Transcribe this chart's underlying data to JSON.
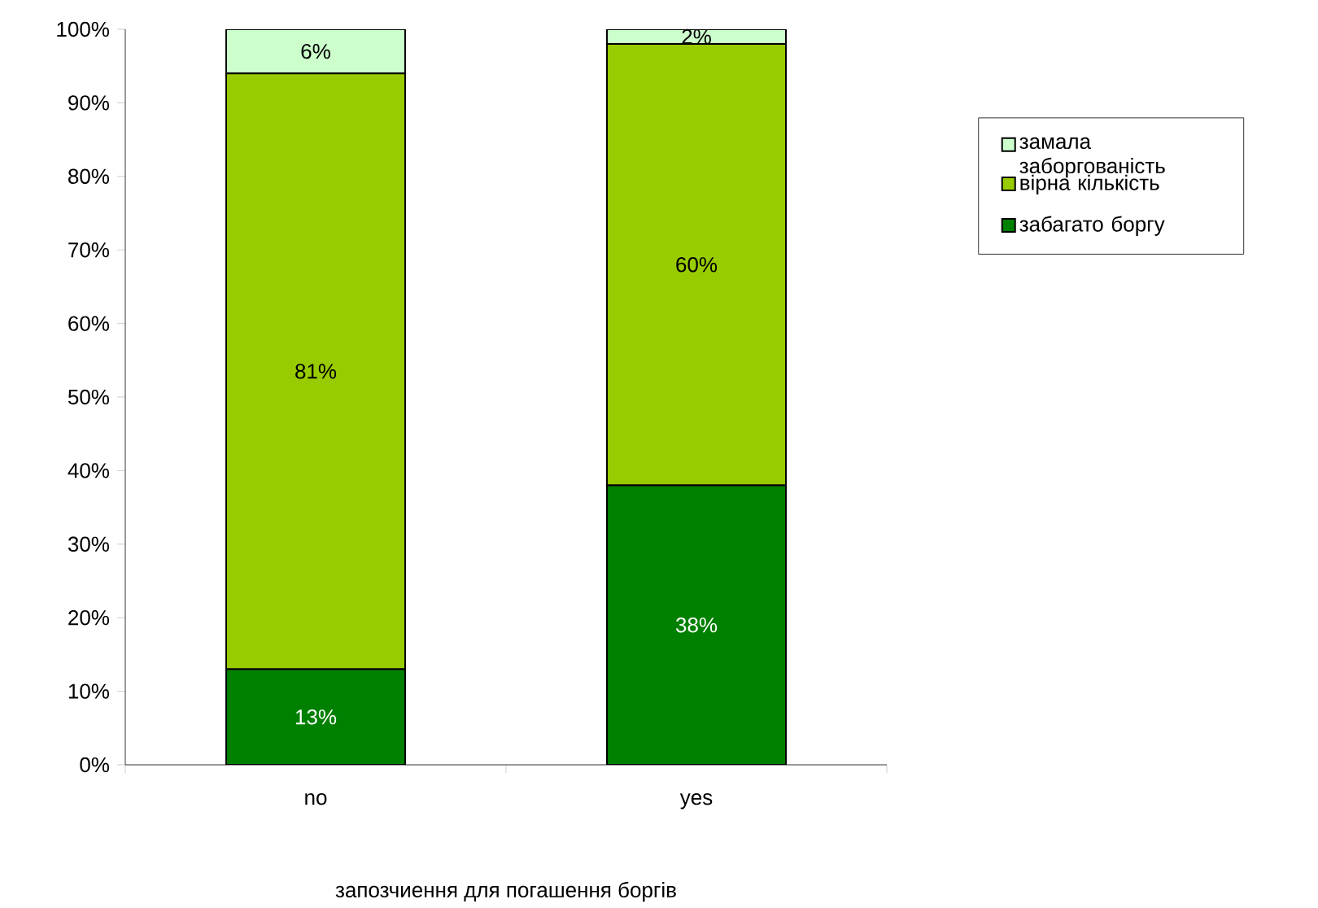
{
  "chart_data": {
    "type": "bar",
    "stacked": true,
    "xlabel": "запозчиення для погашення боргів",
    "categories": [
      "no",
      "yes"
    ],
    "series": [
      {
        "name": "забагато боргу",
        "color": "#008000",
        "values": [
          13,
          38
        ],
        "value_labels": [
          "13%",
          "38%"
        ]
      },
      {
        "name": "вірна кількість",
        "color": "#99cc00",
        "values": [
          81,
          60
        ],
        "value_labels": [
          "81%",
          "60%"
        ]
      },
      {
        "name": "замала заборгованість",
        "color": "#ccffcc",
        "values": [
          6,
          2
        ],
        "value_labels": [
          "6%",
          "2%"
        ]
      }
    ],
    "ylim": [
      0,
      100
    ],
    "yticks": [
      {
        "value": 0,
        "label": "0%"
      },
      {
        "value": 10,
        "label": "10%"
      },
      {
        "value": 20,
        "label": "20%"
      },
      {
        "value": 30,
        "label": "30%"
      },
      {
        "value": 40,
        "label": "40%"
      },
      {
        "value": 50,
        "label": "50%"
      },
      {
        "value": 60,
        "label": "60%"
      },
      {
        "value": 70,
        "label": "70%"
      },
      {
        "value": 80,
        "label": "80%"
      },
      {
        "value": 90,
        "label": "90%"
      },
      {
        "value": 100,
        "label": "100%"
      }
    ],
    "legend": "right",
    "grid": false
  }
}
